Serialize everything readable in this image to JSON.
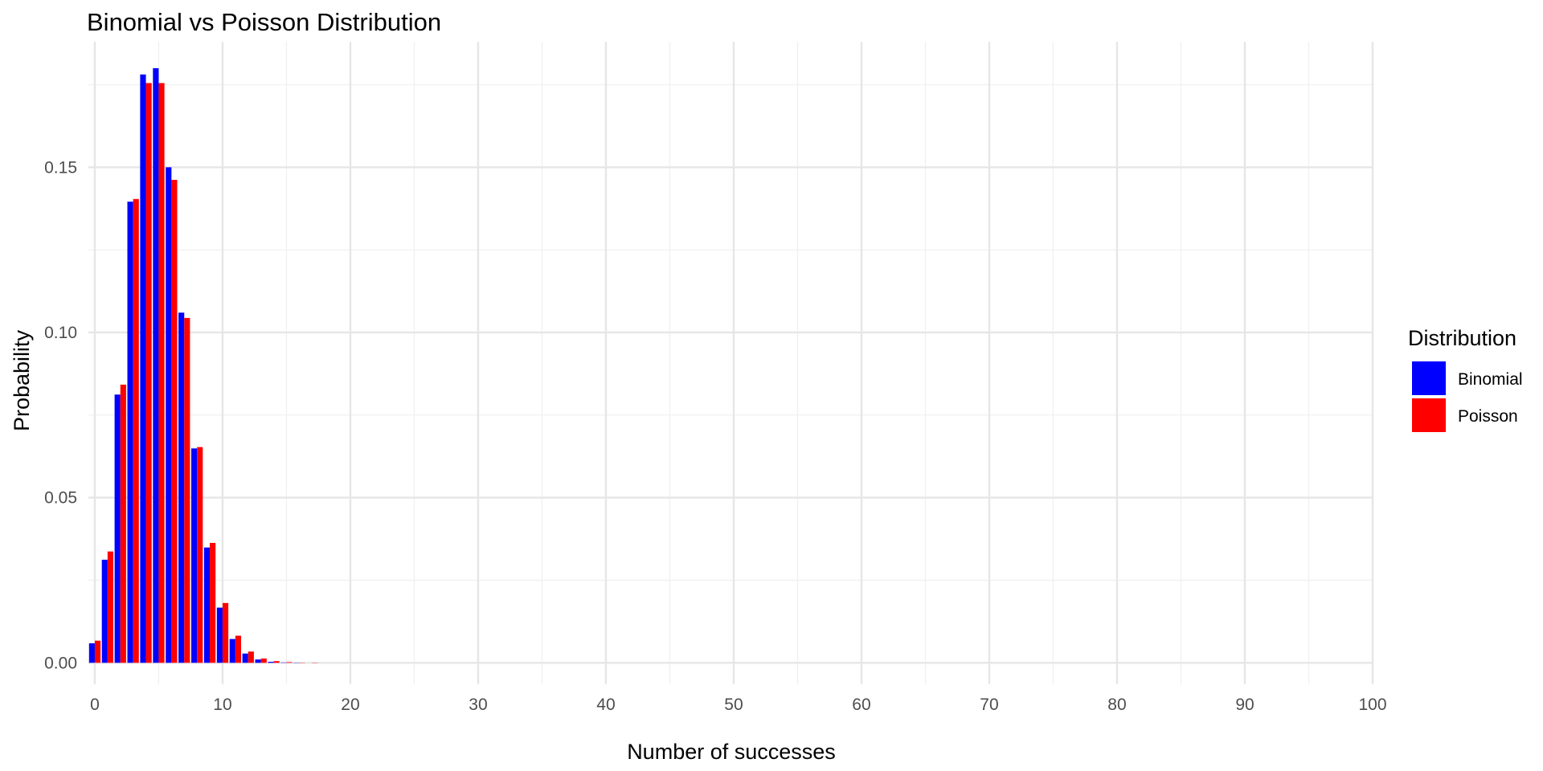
{
  "chart_data": {
    "type": "bar",
    "title": "Binomial vs Poisson Distribution",
    "xlabel": "Number of successes",
    "ylabel": "Probability",
    "xlim": [
      -0.5,
      100
    ],
    "ylim": [
      -0.0065,
      0.188
    ],
    "x_ticks": [
      0,
      10,
      20,
      30,
      40,
      50,
      60,
      70,
      80,
      90,
      100
    ],
    "y_ticks": [
      0.0,
      0.05,
      0.1,
      0.15
    ],
    "y_tick_labels": [
      "0.00",
      "0.05",
      "0.10",
      "0.15"
    ],
    "x": [
      0,
      1,
      2,
      3,
      4,
      5,
      6,
      7,
      8,
      9,
      10,
      11,
      12,
      13,
      14,
      15,
      16,
      17,
      18,
      19,
      20
    ],
    "legend_title": "Distribution",
    "legend_position": "right",
    "grid": true,
    "series": [
      {
        "name": "Binomial",
        "color": "#0000ff",
        "values": [
          0.0059,
          0.0312,
          0.0812,
          0.1396,
          0.1781,
          0.18,
          0.15,
          0.106,
          0.0649,
          0.0349,
          0.0167,
          0.0072,
          0.0028,
          0.001,
          0.0003,
          0.0001,
          2e-05,
          0.0,
          0.0,
          0.0,
          0.0
        ]
      },
      {
        "name": "Poisson",
        "color": "#ff0000",
        "values": [
          0.0067,
          0.0337,
          0.0842,
          0.1404,
          0.1755,
          0.1755,
          0.1462,
          0.1044,
          0.0653,
          0.0363,
          0.0181,
          0.0082,
          0.0034,
          0.0013,
          0.0005,
          0.0002,
          5e-05,
          1e-05,
          0.0,
          0.0,
          0.0
        ]
      }
    ]
  }
}
